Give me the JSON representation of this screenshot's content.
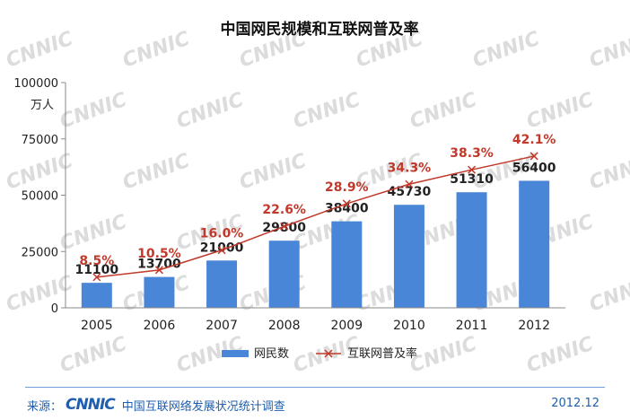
{
  "chart_data": {
    "type": "bar",
    "title": "中国网民规模和互联网普及率",
    "ylabel": "万人",
    "ylim": [
      0,
      100000
    ],
    "yticks": [
      "100000",
      "75000",
      "50000",
      "25000",
      "0"
    ],
    "ytick_values": [
      100000,
      75000,
      50000,
      25000,
      0
    ],
    "categories": [
      "2005",
      "2006",
      "2007",
      "2008",
      "2009",
      "2010",
      "2011",
      "2012"
    ],
    "series": [
      {
        "name": "网民数",
        "type": "bar",
        "color": "#4a86d8",
        "values": [
          11100,
          13700,
          21000,
          29800,
          38400,
          45730,
          51310,
          56400
        ],
        "labels": [
          "11100",
          "13700",
          "21000",
          "29800",
          "38400",
          "45730",
          "51310",
          "56400"
        ]
      },
      {
        "name": "互联网普及率",
        "type": "line",
        "color": "#c0392b",
        "values_percent": [
          8.5,
          10.5,
          16.0,
          22.6,
          28.9,
          34.3,
          38.3,
          42.1
        ],
        "labels": [
          "8.5%",
          "10.5%",
          "16.0%",
          "22.6%",
          "28.9%",
          "34.3%",
          "38.3%",
          "42.1%"
        ]
      }
    ],
    "legend": [
      {
        "name": "网民数",
        "marker": "bar"
      },
      {
        "name": "互联网普及率",
        "marker": "line-x"
      }
    ],
    "legend_position": "bottom"
  },
  "watermark": "CNNIC",
  "footer": {
    "source_label": "来源：",
    "logo_text": "CNNIC",
    "source_text": "中国互联网络发展状况统计调查",
    "date": "2012.12"
  }
}
